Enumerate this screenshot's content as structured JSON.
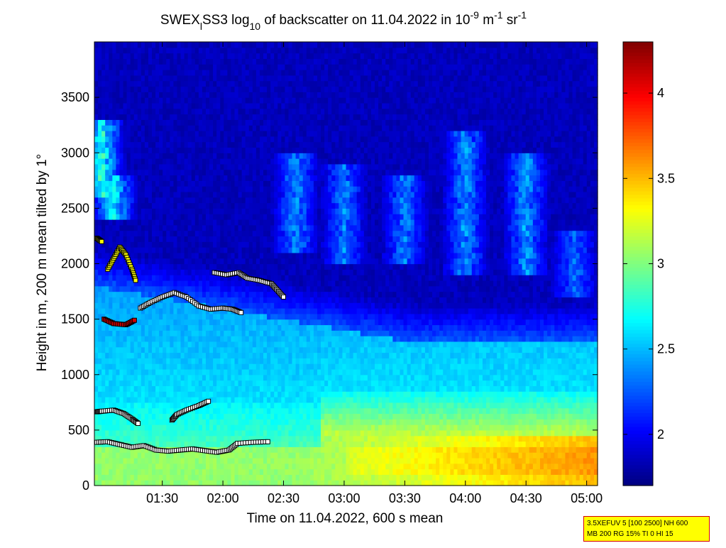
{
  "chart_data": {
    "type": "heatmap",
    "title": "SWEX_lSS3 log_10 of backscatter on 11.04.2022 in 10^-9 m^-1 sr^-1",
    "title_parts": {
      "main_a": "SWEX",
      "sub_a": "l",
      "main_b": "SS3 log",
      "sub_b": "10",
      "main_c": " of backscatter on 11.04.2022 in 10",
      "sup_a": "-9",
      "main_d": " m",
      "sup_b": "-1",
      "main_e": " sr",
      "sup_c": "-1"
    },
    "xlabel": "Time on 11.04.2022, 600 s mean",
    "ylabel": "Height in m, 200 m mean tilted by 1°",
    "x_axis": {
      "unit": "hours",
      "range": [
        0.94,
        5.09
      ],
      "ticks": [
        1.5,
        2.0,
        2.5,
        3.0,
        3.5,
        4.0,
        4.5,
        5.0
      ],
      "tick_labels": [
        "01:30",
        "02:00",
        "02:30",
        "03:00",
        "03:30",
        "04:00",
        "04:30",
        "05:00"
      ]
    },
    "y_axis": {
      "range": [
        0,
        4000
      ],
      "ticks": [
        0,
        500,
        1000,
        1500,
        2000,
        2500,
        3000,
        3500
      ],
      "tick_labels": [
        "0",
        "500",
        "1000",
        "1500",
        "2000",
        "2500",
        "3000",
        "3500"
      ]
    },
    "colorbar": {
      "range": [
        1.7,
        4.3
      ],
      "ticks": [
        2,
        2.5,
        3,
        3.5,
        4
      ],
      "tick_labels": [
        "2",
        "2.5",
        "3",
        "3.5",
        "4"
      ],
      "colormap": "jet"
    },
    "field": {
      "description_values": {
        "surface_layer_top_m": 350,
        "surface_layer_value_early": 3.05,
        "surface_layer_value_late": 3.5,
        "mixed_layer_top_m_early": 1800,
        "mixed_layer_top_m_late": 1300,
        "mixed_layer_value": 2.55,
        "upper_background_value": 1.85,
        "aerosol_patch_value": 2.7
      },
      "upper_patches": [
        {
          "x": 1.0,
          "y0": 2600,
          "y1": 3300,
          "v": 2.95
        },
        {
          "x": 1.1,
          "y0": 2400,
          "y1": 2800,
          "v": 2.85
        },
        {
          "x": 2.6,
          "y0": 2100,
          "y1": 3000,
          "v": 2.55
        },
        {
          "x": 3.0,
          "y0": 2000,
          "y1": 2900,
          "v": 2.5
        },
        {
          "x": 3.5,
          "y0": 2000,
          "y1": 2800,
          "v": 2.5
        },
        {
          "x": 4.0,
          "y0": 1900,
          "y1": 3200,
          "v": 2.55
        },
        {
          "x": 4.5,
          "y0": 1900,
          "y1": 3000,
          "v": 2.6
        },
        {
          "x": 4.9,
          "y0": 1700,
          "y1": 2300,
          "v": 2.45
        }
      ]
    },
    "layer_markers": [
      {
        "name": "",
        "points": [
          [
            0.96,
            390
          ],
          [
            1.05,
            395
          ],
          [
            1.15,
            370
          ],
          [
            1.25,
            345
          ],
          [
            1.35,
            360
          ],
          [
            1.45,
            320
          ],
          [
            1.55,
            310
          ],
          [
            1.65,
            320
          ],
          [
            1.75,
            330
          ],
          [
            1.85,
            315
          ],
          [
            1.95,
            300
          ],
          [
            2.05,
            320
          ],
          [
            2.12,
            380
          ],
          [
            2.25,
            390
          ],
          [
            2.37,
            395
          ]
        ],
        "color": "#ffffff"
      },
      {
        "name": "",
        "points": [
          [
            0.96,
            665
          ],
          [
            1.0,
            670
          ],
          [
            1.1,
            680
          ],
          [
            1.18,
            650
          ],
          [
            1.25,
            600
          ],
          [
            1.3,
            560
          ]
        ],
        "color": "#ffffff"
      },
      {
        "name": "",
        "points": [
          [
            1.58,
            590
          ],
          [
            1.62,
            640
          ],
          [
            1.7,
            680
          ],
          [
            1.8,
            720
          ],
          [
            1.88,
            760
          ]
        ],
        "color": "#ffffff"
      },
      {
        "name": "",
        "points": [
          [
            1.02,
            1500
          ],
          [
            1.1,
            1460
          ],
          [
            1.2,
            1450
          ],
          [
            1.27,
            1490
          ]
        ],
        "color": "#d40000"
      },
      {
        "name": "",
        "points": [
          [
            1.32,
            1600
          ],
          [
            1.4,
            1650
          ],
          [
            1.5,
            1700
          ],
          [
            1.6,
            1740
          ],
          [
            1.7,
            1700
          ],
          [
            1.8,
            1620
          ],
          [
            1.9,
            1590
          ],
          [
            2.0,
            1600
          ],
          [
            2.08,
            1590
          ],
          [
            2.15,
            1560
          ]
        ],
        "color": "#ffffff"
      },
      {
        "name": "",
        "points": [
          [
            1.93,
            1920
          ],
          [
            2.03,
            1900
          ],
          [
            2.13,
            1920
          ],
          [
            2.2,
            1870
          ],
          [
            2.3,
            1850
          ],
          [
            2.4,
            1820
          ],
          [
            2.45,
            1760
          ],
          [
            2.5,
            1700
          ]
        ],
        "color": "#ffffff"
      },
      {
        "name": "",
        "points": [
          [
            1.05,
            1950
          ],
          [
            1.1,
            2050
          ],
          [
            1.15,
            2150
          ],
          [
            1.2,
            2080
          ],
          [
            1.25,
            1950
          ],
          [
            1.28,
            1850
          ]
        ],
        "color": "#ffff00"
      },
      {
        "name": "",
        "points": [
          [
            0.96,
            2230
          ],
          [
            1.0,
            2200
          ]
        ],
        "color": "#ffff00"
      }
    ]
  },
  "info_box": {
    "line1": "3.5XEFUV 5 [100 2500] NH 600",
    "line2": "MB 200 RG 15% TI 0 HI 15"
  }
}
